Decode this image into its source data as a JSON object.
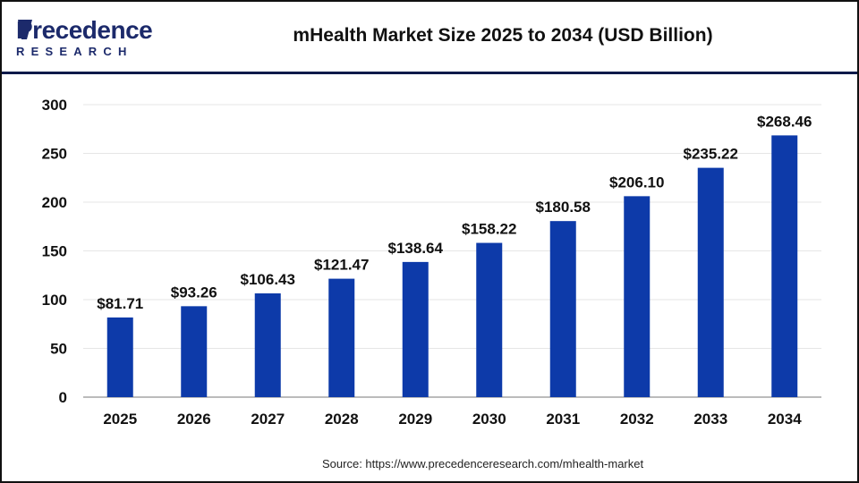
{
  "logo": {
    "line1": "Precedence",
    "line2": "RESEARCH"
  },
  "title": "mHealth Market Size 2025 to 2034 (USD Billion)",
  "source": "Source: https://www.precedenceresearch.com/mhealth-market",
  "colors": {
    "bar": "#0d3aa9",
    "header_rule": "#0b1a4a",
    "axis": "#bbbbbb",
    "grid": "#e6e6e6"
  },
  "chart_data": {
    "type": "bar",
    "title": "mHealth Market Size 2025 to 2034 (USD Billion)",
    "categories": [
      "2025",
      "2026",
      "2027",
      "2028",
      "2029",
      "2030",
      "2031",
      "2032",
      "2033",
      "2034"
    ],
    "values": [
      81.71,
      93.26,
      106.43,
      121.47,
      138.64,
      158.22,
      180.58,
      206.1,
      235.22,
      268.46
    ],
    "labels": [
      "$81.71",
      "$93.26",
      "$106.43",
      "$121.47",
      "$138.64",
      "$158.22",
      "$180.58",
      "$206.10",
      "$235.22",
      "$268.46"
    ],
    "yticks": [
      0,
      50,
      100,
      150,
      200,
      250,
      300
    ],
    "ylim": [
      0,
      300
    ],
    "grid": true,
    "xlabel": "",
    "ylabel": ""
  }
}
